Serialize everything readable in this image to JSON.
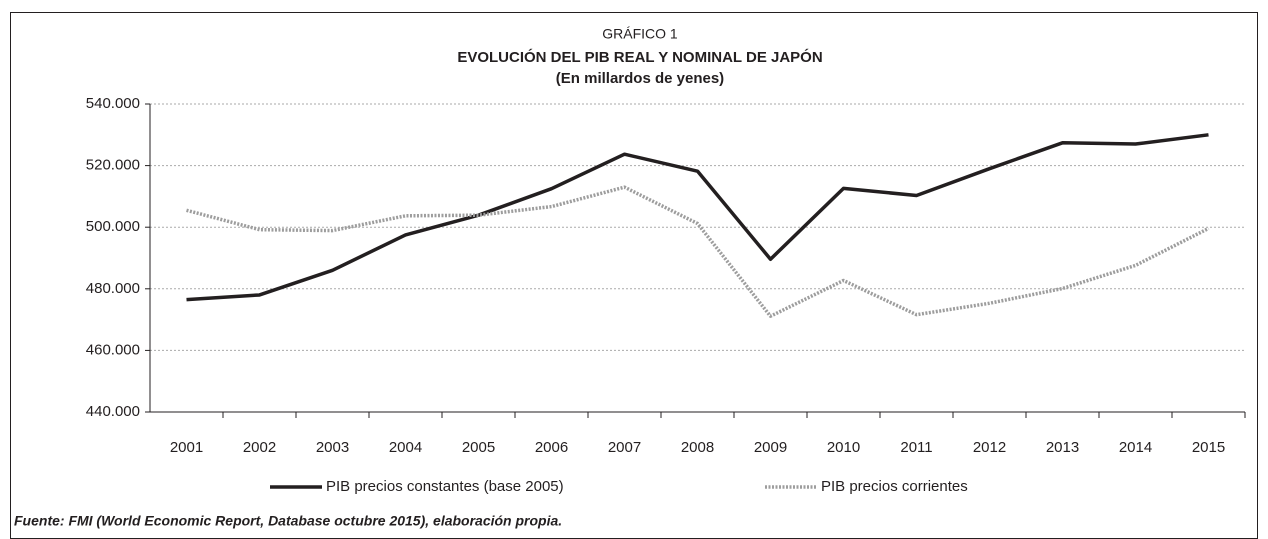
{
  "chart_data": {
    "type": "line",
    "subtitle_top": "GRÁFICO 1",
    "title": "EVOLUCIÓN DEL PIB REAL Y NOMINAL DE JAPÓN",
    "subtitle": "(En millardos de yenes)",
    "categories": [
      "2001",
      "2002",
      "2003",
      "2004",
      "2005",
      "2006",
      "2007",
      "2008",
      "2009",
      "2010",
      "2011",
      "2012",
      "2013",
      "2014",
      "2015"
    ],
    "series": [
      {
        "name": "PIB precios constantes (base 2005)",
        "color": "#231f20",
        "line_style": "solid",
        "values": [
          476500,
          478000,
          486000,
          497500,
          503900,
          512500,
          523700,
          518200,
          489600,
          512600,
          510300,
          519000,
          527400,
          527000,
          530000
        ]
      },
      {
        "name": "PIB precios corrientes",
        "color": "#9d9d9d",
        "line_style": "dotted",
        "values": [
          505500,
          499200,
          498900,
          503700,
          503900,
          506700,
          513000,
          501200,
          471100,
          482700,
          471600,
          475300,
          480100,
          487600,
          499600
        ]
      }
    ],
    "ylim": [
      440000,
      540000
    ],
    "yticks": [
      {
        "value": 440000,
        "label": "440.000"
      },
      {
        "value": 460000,
        "label": "460.000"
      },
      {
        "value": 480000,
        "label": "480.000"
      },
      {
        "value": 500000,
        "label": "500.000"
      },
      {
        "value": 520000,
        "label": "520.000"
      },
      {
        "value": 540000,
        "label": "540.000"
      }
    ],
    "grid": true,
    "legend": "bottom",
    "source": "Fuente: FMI (World Economic Report, Database octubre 2015), elaboración propia."
  }
}
